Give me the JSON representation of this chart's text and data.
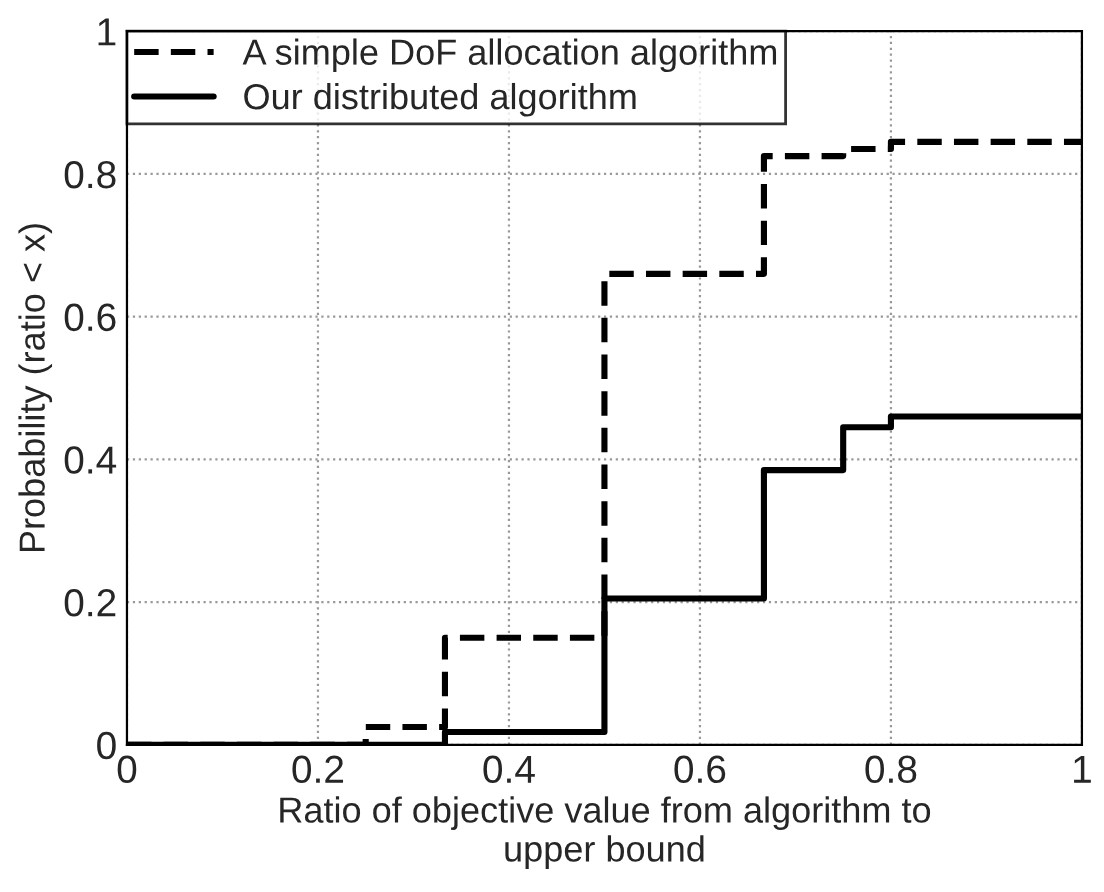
{
  "chart_data": {
    "type": "step",
    "xlabel": "Ratio of objective value from algorithm to\nupper bound",
    "ylabel": "Probability (ratio < x)",
    "xlim": [
      0,
      1
    ],
    "ylim": [
      0,
      1
    ],
    "xticks": [
      0,
      0.2,
      0.4,
      0.6,
      0.8,
      1
    ],
    "yticks": [
      0,
      0.2,
      0.4,
      0.6,
      0.8,
      1
    ],
    "grid": true,
    "legend": "top left",
    "series": [
      {
        "name": "A simple DoF allocation algorithm",
        "color": "#000000",
        "line_style": "dashed",
        "x": [
          0,
          0.25,
          0.333,
          0.5,
          0.667,
          0.75,
          0.8,
          1
        ],
        "values": [
          0,
          0.025,
          0.15,
          0.66,
          0.825,
          0.835,
          0.845,
          0.845
        ]
      },
      {
        "name": "Our distributed algorithm",
        "color": "#000000",
        "line_style": "solid",
        "x": [
          0,
          0.333,
          0.5,
          0.667,
          0.75,
          0.8,
          1
        ],
        "values": [
          0,
          0.018,
          0.205,
          0.385,
          0.445,
          0.46,
          0.46
        ]
      }
    ]
  }
}
